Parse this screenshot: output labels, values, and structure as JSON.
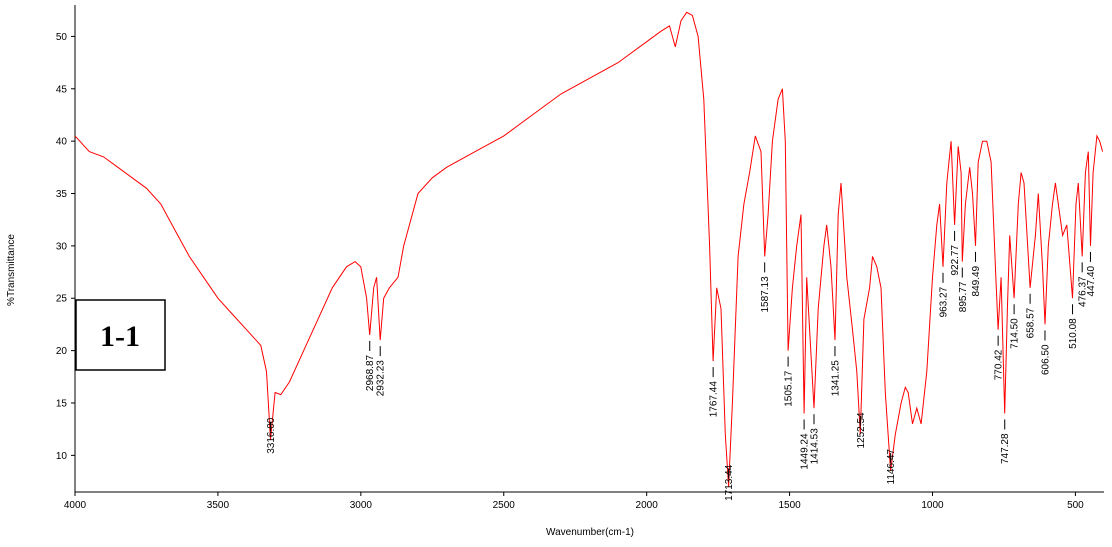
{
  "chart_data": {
    "type": "line",
    "badge": "1-1",
    "x_label": "Wavenumber(cm-1)",
    "y_label": "%Transmittance",
    "xlim": [
      4000,
      400
    ],
    "ylim": [
      6.5,
      53
    ],
    "xticks": [
      4000,
      3500,
      3000,
      2500,
      2000,
      1500,
      1000,
      500
    ],
    "yticks": [
      10,
      15,
      20,
      25,
      30,
      35,
      40,
      45,
      50
    ],
    "series": [
      {
        "color": "#ff0000",
        "x": [
          4000,
          3950,
          3900,
          3850,
          3800,
          3750,
          3700,
          3650,
          3600,
          3550,
          3500,
          3450,
          3400,
          3350,
          3330,
          3316,
          3300,
          3280,
          3250,
          3200,
          3150,
          3100,
          3050,
          3020,
          3000,
          2980,
          2968.87,
          2955,
          2945,
          2932.23,
          2920,
          2900,
          2870,
          2850,
          2800,
          2750,
          2700,
          2600,
          2500,
          2400,
          2300,
          2200,
          2100,
          2000,
          1950,
          1920,
          1900,
          1880,
          1860,
          1840,
          1820,
          1800,
          1780,
          1767.44,
          1755,
          1740,
          1725,
          1713.44,
          1700,
          1680,
          1660,
          1640,
          1620,
          1600,
          1587.13,
          1575,
          1560,
          1540,
          1525,
          1515,
          1505.17,
          1490,
          1475,
          1460,
          1449.24,
          1440,
          1430,
          1414.53,
          1400,
          1380,
          1370,
          1355,
          1341.25,
          1330,
          1320,
          1300,
          1280,
          1265,
          1252.54,
          1240,
          1220,
          1210,
          1195,
          1180,
          1165,
          1146.47,
          1130,
          1110,
          1095,
          1085,
          1070,
          1055,
          1040,
          1020,
          1000,
          985,
          975,
          963.27,
          950,
          935,
          922.77,
          910,
          900,
          895.77,
          885,
          870,
          860,
          849.49,
          840,
          825,
          810,
          795,
          780,
          770.42,
          760,
          747.28,
          738,
          730,
          714.5,
          700,
          690,
          680,
          658.57,
          640,
          630,
          615,
          606.5,
          595,
          580,
          570,
          560,
          545,
          530,
          510.08,
          498,
          490,
          476.37,
          465,
          455,
          447.4,
          438,
          425,
          415,
          405
        ],
        "values": [
          40.5,
          39,
          38.5,
          37.5,
          36.5,
          35.5,
          34,
          31.5,
          29,
          27,
          25,
          23.5,
          22,
          20.5,
          18,
          11.5,
          16,
          15.8,
          17,
          20,
          23,
          26,
          28,
          28.5,
          28,
          25,
          21.5,
          26,
          27,
          21,
          25,
          26,
          27,
          30,
          35,
          36.5,
          37.5,
          39,
          40.5,
          42.5,
          44.5,
          46,
          47.5,
          49.5,
          50.5,
          51,
          49,
          51.5,
          52.3,
          52,
          50,
          44,
          30,
          19,
          26,
          24,
          12,
          7,
          15,
          29,
          34,
          37,
          40.5,
          39,
          29,
          33,
          40,
          44,
          45,
          40,
          20,
          26,
          30,
          33,
          14,
          27,
          22,
          14.5,
          24,
          30,
          32,
          28,
          21,
          33,
          36,
          27,
          22,
          18,
          12,
          23,
          26,
          29,
          28,
          26,
          16,
          8.5,
          12,
          15,
          16.5,
          16,
          13,
          14.5,
          13,
          18,
          27,
          32,
          34,
          28,
          36,
          40,
          32,
          39.5,
          37,
          28.5,
          34,
          37.5,
          35,
          30,
          38,
          40,
          40,
          38,
          28,
          22,
          27,
          14,
          24,
          31,
          25,
          34,
          37,
          36,
          26,
          31,
          35,
          28,
          22.5,
          30,
          34,
          36,
          34,
          31,
          32,
          25,
          34,
          36,
          29,
          37,
          39,
          30,
          37,
          40.5,
          40,
          39
        ]
      }
    ],
    "peaks": [
      {
        "x": 3316.0,
        "label": "3316.00"
      },
      {
        "x": 2968.87,
        "label": "2968.87"
      },
      {
        "x": 2932.23,
        "label": "2932.23"
      },
      {
        "x": 1767.44,
        "label": "1767.44"
      },
      {
        "x": 1713.44,
        "label": "1713.44"
      },
      {
        "x": 1587.13,
        "label": "1587.13"
      },
      {
        "x": 1505.17,
        "label": "1505.17"
      },
      {
        "x": 1449.24,
        "label": "1449.24"
      },
      {
        "x": 1414.53,
        "label": "1414.53"
      },
      {
        "x": 1341.25,
        "label": "1341.25"
      },
      {
        "x": 1252.54,
        "label": "1252.54"
      },
      {
        "x": 1146.47,
        "label": "1146.47"
      },
      {
        "x": 963.27,
        "label": "963.27"
      },
      {
        "x": 922.77,
        "label": "922.77"
      },
      {
        "x": 895.77,
        "label": "895.77"
      },
      {
        "x": 849.49,
        "label": "849.49"
      },
      {
        "x": 770.42,
        "label": "770.42"
      },
      {
        "x": 747.28,
        "label": "747.28"
      },
      {
        "x": 714.5,
        "label": "714.50"
      },
      {
        "x": 658.57,
        "label": "658.57"
      },
      {
        "x": 606.5,
        "label": "606.50"
      },
      {
        "x": 510.08,
        "label": "510.08"
      },
      {
        "x": 476.37,
        "label": "476.37"
      },
      {
        "x": 447.4,
        "label": "447.40"
      }
    ]
  }
}
